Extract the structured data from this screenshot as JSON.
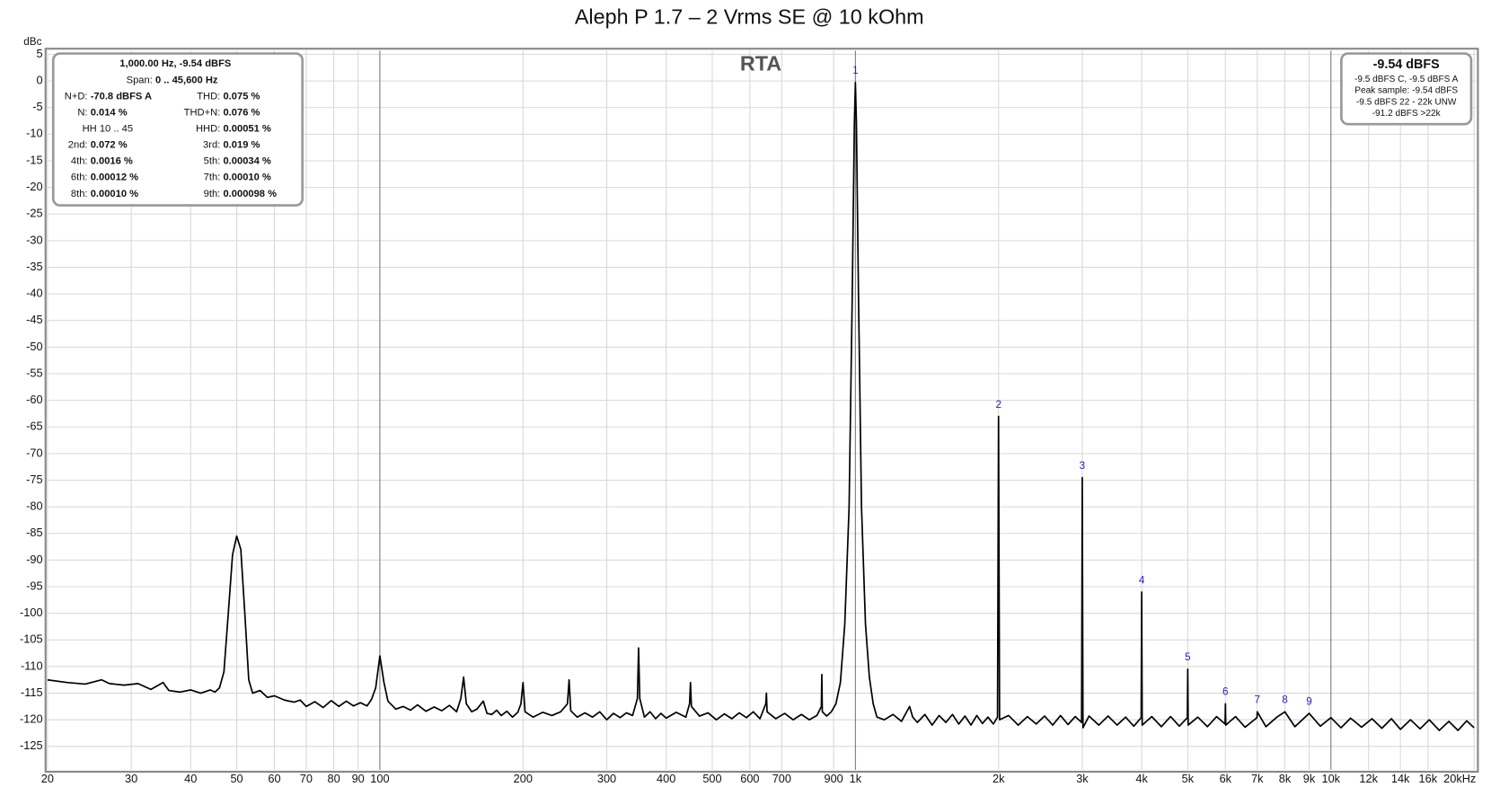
{
  "chart_data": {
    "type": "line",
    "title": "Aleph P 1.7 – 2 Vrms SE @ 10 kOhm",
    "y_label": "dBc",
    "mode_label": "RTA",
    "log_x": true,
    "grid": true,
    "color": "#000000",
    "xlim": [
      20,
      20000
    ],
    "ylim": [
      -129.4,
      5.7
    ],
    "xticks": [
      20,
      30,
      40,
      50,
      60,
      70,
      80,
      90,
      100,
      200,
      300,
      400,
      500,
      600,
      700,
      900,
      {
        "value": 1000,
        "label": "1k"
      },
      {
        "value": 2000,
        "label": "2k"
      },
      {
        "value": 3000,
        "label": "3k"
      },
      {
        "value": 4000,
        "label": "4k"
      },
      {
        "value": 5000,
        "label": "5k"
      },
      {
        "value": 6000,
        "label": "6k"
      },
      {
        "value": 7000,
        "label": "7k"
      },
      {
        "value": 8000,
        "label": "8k"
      },
      {
        "value": 9000,
        "label": "9k"
      },
      {
        "value": 10000,
        "label": "10k"
      },
      {
        "value": 12000,
        "label": "12k"
      },
      {
        "value": 14000,
        "label": "14k"
      },
      {
        "value": 16000,
        "label": "16k"
      },
      {
        "value": 20000,
        "label": "20kHz"
      }
    ],
    "yticks": [
      5,
      0,
      -5,
      -10,
      -15,
      -20,
      -25,
      -30,
      -35,
      -40,
      -45,
      -50,
      -55,
      -60,
      -65,
      -70,
      -75,
      -80,
      -85,
      -90,
      -95,
      -100,
      -105,
      -110,
      -115,
      -120,
      -125
    ],
    "x": [
      20,
      22,
      24,
      26,
      27,
      29,
      31,
      33,
      35,
      36,
      38,
      40,
      42,
      44,
      45,
      46,
      47,
      48,
      49,
      50,
      51,
      52,
      53,
      54,
      56,
      58,
      60,
      63,
      66,
      68,
      70,
      73,
      76,
      79,
      82,
      85,
      88,
      91,
      94,
      96,
      98,
      100,
      102,
      104,
      108,
      112,
      116,
      120,
      125,
      130,
      135,
      140,
      145,
      148,
      150,
      152,
      156,
      160,
      165,
      168,
      172,
      176,
      180,
      185,
      190,
      195,
      198,
      200,
      202,
      210,
      220,
      230,
      240,
      248,
      250,
      252,
      260,
      270,
      280,
      290,
      300,
      310,
      320,
      330,
      340,
      348,
      350,
      352,
      360,
      370,
      380,
      390,
      400,
      420,
      440,
      448,
      450,
      452,
      470,
      490,
      510,
      530,
      550,
      570,
      590,
      610,
      630,
      648,
      650,
      652,
      680,
      710,
      740,
      770,
      800,
      830,
      848,
      850,
      852,
      870,
      890,
      910,
      930,
      950,
      970,
      985,
      995,
      1000,
      1005,
      1015,
      1030,
      1050,
      1070,
      1090,
      1110,
      1150,
      1200,
      1250,
      1300,
      1320,
      1350,
      1400,
      1450,
      1500,
      1550,
      1600,
      1650,
      1700,
      1750,
      1800,
      1850,
      1900,
      1950,
      1990,
      2000,
      2010,
      2100,
      2200,
      2300,
      2400,
      2500,
      2600,
      2700,
      2800,
      2900,
      2990,
      3000,
      3010,
      3100,
      3250,
      3400,
      3550,
      3700,
      3850,
      3990,
      4000,
      4010,
      4200,
      4400,
      4600,
      4800,
      4990,
      5000,
      5010,
      5250,
      5500,
      5750,
      5990,
      6000,
      6010,
      6300,
      6600,
      6990,
      7000,
      7300,
      7700,
      8000,
      8400,
      9000,
      9500,
      10000,
      10500,
      11000,
      11600,
      12200,
      12800,
      13400,
      14000,
      14700,
      15400,
      16100,
      16900,
      17700,
      18500,
      19300,
      20000
    ],
    "values": [
      -112.5,
      -113,
      -113.3,
      -112.5,
      -113.2,
      -113.5,
      -113.2,
      -114.3,
      -113,
      -114.5,
      -114.8,
      -114.4,
      -115,
      -114.4,
      -114.8,
      -114,
      -111,
      -100,
      -89,
      -85.5,
      -88,
      -100,
      -112.5,
      -115,
      -114.5,
      -115.8,
      -115.5,
      -116.3,
      -116.7,
      -116.3,
      -117.5,
      -116.6,
      -117.7,
      -116.4,
      -117.5,
      -116.5,
      -117.4,
      -116.8,
      -117.4,
      -116.2,
      -114,
      -108,
      -113,
      -116.5,
      -118,
      -117.5,
      -118.2,
      -117.2,
      -118.4,
      -117.6,
      -118.3,
      -117.3,
      -118.5,
      -116,
      -112,
      -117,
      -118.5,
      -118,
      -116.5,
      -118.8,
      -119,
      -118.2,
      -119.2,
      -118.4,
      -119.5,
      -118.6,
      -117,
      -113,
      -118.5,
      -119.5,
      -118.6,
      -119.2,
      -118.5,
      -117,
      -112.5,
      -118.3,
      -119.5,
      -118.7,
      -119.5,
      -118.5,
      -120,
      -118.8,
      -119.6,
      -118.7,
      -119.2,
      -116,
      -106.5,
      -116,
      -119.5,
      -118.5,
      -119.8,
      -118.8,
      -119.7,
      -118.6,
      -119.5,
      -117,
      -113,
      -117.5,
      -119.3,
      -118.7,
      -120,
      -118.9,
      -119.8,
      -118.7,
      -119.6,
      -118.5,
      -119.8,
      -117,
      -115,
      -118.5,
      -119.8,
      -118.8,
      -120,
      -119,
      -120,
      -119.2,
      -117.5,
      -111.5,
      -118.5,
      -119.3,
      -118.5,
      -117,
      -113,
      -102,
      -80,
      -40,
      -8,
      -0.3,
      -8,
      -40,
      -80,
      -102,
      -112,
      -117,
      -119.5,
      -120,
      -119,
      -120.3,
      -117.5,
      -119.5,
      -120.5,
      -119,
      -121,
      -119.2,
      -120.5,
      -119,
      -120.8,
      -119.3,
      -121,
      -119.2,
      -120.7,
      -119.5,
      -120.8,
      -119.5,
      -63,
      -120,
      -119.2,
      -121,
      -119.4,
      -120.8,
      -119.3,
      -121,
      -119.2,
      -120.9,
      -119.4,
      -120.5,
      -74.5,
      -121.5,
      -119.3,
      -121,
      -119.3,
      -121,
      -119.5,
      -121.2,
      -119.6,
      -96,
      -121,
      -119.4,
      -121.3,
      -119.4,
      -121.2,
      -119.6,
      -110.5,
      -121,
      -119.5,
      -121.3,
      -119.4,
      -120.8,
      -117,
      -121,
      -119.4,
      -121.4,
      -119.6,
      -118.5,
      -121.3,
      -119.5,
      -118.5,
      -121.3,
      -118.8,
      -121.2,
      -119.6,
      -121.5,
      -119.7,
      -121.4,
      -119.8,
      -121.6,
      -119.8,
      -121.8,
      -120,
      -121.7,
      -120,
      -122,
      -120.3,
      -122,
      -120.2,
      -121.5
    ],
    "harmonics": [
      {
        "label": "1",
        "x": 1000
      },
      {
        "label": "2",
        "x": 2000
      },
      {
        "label": "3",
        "x": 3000
      },
      {
        "label": "4",
        "x": 4000
      },
      {
        "label": "5",
        "x": 5000
      },
      {
        "label": "6",
        "x": 6000
      },
      {
        "label": "7",
        "x": 7000
      },
      {
        "label": "8",
        "x": 8000
      },
      {
        "label": "9",
        "x": 9000
      }
    ],
    "info_box": {
      "header": "1,000.00 Hz, -9.54 dBFS",
      "span": {
        "label": "Span:",
        "value": "0 .. 45,600 Hz"
      },
      "rows": [
        [
          {
            "label": "N+D:",
            "value": "-70.8 dBFS A"
          },
          {
            "label": "THD:",
            "value": "0.075 %"
          }
        ],
        [
          {
            "label": "N:",
            "value": "0.014 %"
          },
          {
            "label": "THD+N:",
            "value": "0.076 %"
          }
        ],
        [
          {
            "label": "HH 10 .. 45"
          },
          {
            "label": "HHD:",
            "value": "0.00051 %"
          }
        ],
        [
          {
            "label": "2nd:",
            "value": "0.072 %"
          },
          {
            "label": "3rd:",
            "value": "0.019 %"
          }
        ],
        [
          {
            "label": "4th:",
            "value": "0.0016 %"
          },
          {
            "label": "5th:",
            "value": "0.00034 %"
          }
        ],
        [
          {
            "label": "6th:",
            "value": "0.00012 %"
          },
          {
            "label": "7th:",
            "value": "0.00010 %"
          }
        ],
        [
          {
            "label": "8th:",
            "value": "0.00010 %"
          },
          {
            "label": "9th:",
            "value": "0.000098 %"
          }
        ]
      ]
    },
    "level_box": {
      "title": "-9.54 dBFS",
      "lines": [
        "-9.5 dBFS C, -9.5 dBFS A",
        "Peak sample: -9.54 dBFS",
        "-9.5 dBFS 22 - 22k UNW",
        "-91.2 dBFS >22k"
      ]
    }
  }
}
